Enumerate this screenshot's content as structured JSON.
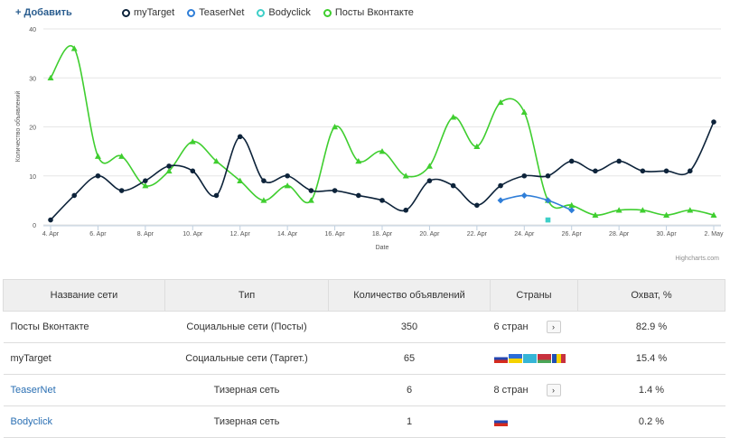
{
  "add_label": "+ Добавить",
  "legend": {
    "mytarget": "myTarget",
    "teasernet": "TeaserNet",
    "bodyclick": "Bodyclick",
    "vk": "Посты Вконтакте"
  },
  "colors": {
    "mytarget": "#0d233a",
    "teasernet": "#2f7ed8",
    "bodyclick": "#3ecfc8",
    "vk": "#3fce2f"
  },
  "chart_data": {
    "type": "line",
    "ylabel": "Количество объявлений",
    "xlabel": "Date",
    "ylim": [
      0,
      40
    ],
    "yticks": [
      "0",
      "10",
      "20",
      "30",
      "40"
    ],
    "x_tick_labels": [
      "4. Apr",
      "6. Apr",
      "8. Apr",
      "10. Apr",
      "12. Apr",
      "14. Apr",
      "16. Apr",
      "18. Apr",
      "20. Apr",
      "22. Apr",
      "24. Apr",
      "26. Apr",
      "28. Apr",
      "30. Apr",
      "2. May"
    ],
    "x": [
      "4. Apr",
      "5. Apr",
      "6. Apr",
      "7. Apr",
      "8. Apr",
      "9. Apr",
      "10. Apr",
      "11. Apr",
      "12. Apr",
      "13. Apr",
      "14. Apr",
      "15. Apr",
      "16. Apr",
      "17. Apr",
      "18. Apr",
      "19. Apr",
      "20. Apr",
      "21. Apr",
      "22. Apr",
      "23. Apr",
      "24. Apr",
      "25. Apr",
      "26. Apr",
      "27. Apr",
      "28. Apr",
      "29. Apr",
      "30. Apr",
      "1. May",
      "2. May"
    ],
    "series": [
      {
        "key": "vk",
        "name": "Посты Вконтакте",
        "marker": "triangle",
        "values": [
          30,
          36,
          14,
          14,
          8,
          11,
          17,
          13,
          9,
          5,
          8,
          5,
          20,
          13,
          15,
          10,
          12,
          22,
          16,
          25,
          23,
          5,
          4,
          2,
          3,
          3,
          2,
          3,
          2
        ]
      },
      {
        "key": "mytarget",
        "name": "myTarget",
        "marker": "circle",
        "values": [
          1,
          6,
          10,
          7,
          9,
          12,
          11,
          6,
          18,
          9,
          10,
          7,
          7,
          6,
          5,
          3,
          9,
          8,
          4,
          8,
          10,
          10,
          13,
          11,
          13,
          11,
          11,
          11,
          21
        ]
      },
      {
        "key": "teasernet",
        "name": "TeaserNet",
        "marker": "diamond",
        "values": [
          null,
          null,
          null,
          null,
          null,
          null,
          null,
          null,
          null,
          null,
          null,
          null,
          null,
          null,
          null,
          null,
          null,
          null,
          null,
          5,
          6,
          5,
          3,
          null,
          null,
          null,
          null,
          null,
          null
        ]
      },
      {
        "key": "bodyclick",
        "name": "Bodyclick",
        "marker": "square",
        "values": [
          null,
          null,
          null,
          null,
          null,
          null,
          null,
          null,
          null,
          null,
          null,
          null,
          null,
          null,
          null,
          null,
          null,
          null,
          null,
          null,
          null,
          1,
          null,
          null,
          null,
          null,
          null,
          null,
          null
        ]
      }
    ]
  },
  "credits": "Highcharts.com",
  "table": {
    "headers": [
      "Название сети",
      "Тип",
      "Количество объявлений",
      "Страны",
      "Охват, %"
    ],
    "rows": [
      {
        "name": "Посты Вконтакте",
        "type": "Социальные сети (Посты)",
        "count": "350",
        "countries": "6 стран",
        "flags": [],
        "reach": "82.9 %"
      },
      {
        "name": "myTarget",
        "type": "Социальные сети (Таргет.)",
        "count": "65",
        "countries": "",
        "flags": [
          "ru",
          "ua",
          "kz",
          "by",
          "md"
        ],
        "reach": "15.4 %"
      },
      {
        "name": "TeaserNet",
        "type": "Тизерная сеть",
        "count": "6",
        "countries": "8 стран",
        "flags": [],
        "reach": "1.4 %"
      },
      {
        "name": "Bodyclick",
        "type": "Тизерная сеть",
        "count": "1",
        "countries": "",
        "flags": [
          "ru"
        ],
        "reach": "0.2 %"
      }
    ]
  }
}
